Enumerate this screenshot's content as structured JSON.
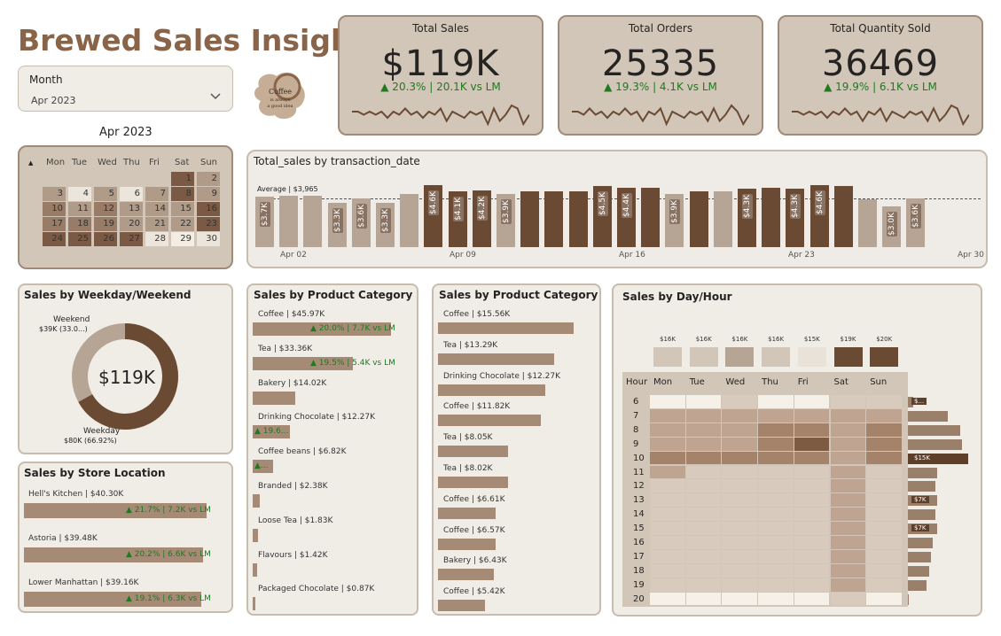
{
  "header": {
    "title": "Brewed Sales Insights",
    "month_label": "Month",
    "month_value": "Apr 2023",
    "logo_text": "Coffee is always a good idea"
  },
  "colors": {
    "dark": "#6b4a33",
    "mid": "#9a7f6b",
    "light": "#b6a594",
    "pale": "#e8e2d8",
    "card": "#d1c6b8",
    "positive": "#1f7a1f"
  },
  "kpis": [
    {
      "title": "Total Sales",
      "value": "$119K",
      "delta": "▲ 20.3% | 20.1K vs LM",
      "spark": [
        6,
        6,
        5,
        6,
        5,
        6,
        4,
        6,
        5,
        7,
        5,
        6,
        4,
        6,
        5,
        7,
        3,
        6,
        5,
        4,
        6,
        5,
        6,
        2,
        7,
        3,
        5,
        8,
        7,
        2,
        5
      ]
    },
    {
      "title": "Total Orders",
      "value": "25335",
      "delta": "▲ 19.3% | 4.1K vs LM",
      "spark": [
        6,
        6,
        5,
        7,
        5,
        6,
        4,
        6,
        5,
        7,
        5,
        6,
        3,
        6,
        5,
        7,
        2,
        6,
        5,
        4,
        6,
        5,
        6,
        3,
        7,
        3,
        5,
        8,
        6,
        2,
        5
      ]
    },
    {
      "title": "Total Quantity Sold",
      "value": "36469",
      "delta": "▲ 19.9% | 6.1K vs LM",
      "spark": [
        6,
        6,
        5,
        6,
        5,
        6,
        4,
        6,
        5,
        7,
        5,
        6,
        3,
        6,
        5,
        7,
        3,
        6,
        5,
        4,
        6,
        5,
        6,
        3,
        7,
        3,
        5,
        8,
        7,
        2,
        5
      ]
    }
  ],
  "calendar": {
    "title": "Apr 2023",
    "days_header": [
      "Mon",
      "Tue",
      "Wed",
      "Thu",
      "Fri",
      "Sat",
      "Sun"
    ],
    "weeks": [
      [
        "",
        "",
        "",
        "",
        "",
        "1",
        "2"
      ],
      [
        "3",
        "4",
        "5",
        "6",
        "7",
        "8",
        "9"
      ],
      [
        "10",
        "11",
        "12",
        "13",
        "14",
        "15",
        "16"
      ],
      [
        "17",
        "18",
        "19",
        "20",
        "21",
        "22",
        "23"
      ],
      [
        "24",
        "25",
        "26",
        "27",
        "28",
        "29",
        "30"
      ]
    ],
    "shades": [
      [
        0,
        0,
        0,
        0,
        0,
        4,
        2
      ],
      [
        2,
        0,
        2,
        0,
        2,
        4,
        2
      ],
      [
        3,
        2,
        3,
        2,
        2,
        2,
        4
      ],
      [
        3,
        3,
        3,
        2,
        2,
        2,
        4
      ],
      [
        4,
        4,
        4,
        4,
        0,
        1,
        0
      ]
    ]
  },
  "daily_chart": {
    "title": "Total_sales by transaction_date",
    "average_label": "Average | $3,965",
    "x_ticks": [
      "Apr 02",
      "Apr 09",
      "Apr 16",
      "Apr 23",
      "Apr 30"
    ],
    "values": [
      3.7,
      3.8,
      3.8,
      3.3,
      3.6,
      3.3,
      3.9,
      4.6,
      4.1,
      4.2,
      3.9,
      4.1,
      4.1,
      4.1,
      4.5,
      4.4,
      4.4,
      3.9,
      4.1,
      4.1,
      4.3,
      4.4,
      4.3,
      4.6,
      4.5,
      3.5,
      3.0,
      3.6
    ],
    "dark": [
      0,
      0,
      0,
      0,
      0,
      0,
      0,
      1,
      1,
      1,
      0,
      1,
      1,
      1,
      1,
      1,
      1,
      0,
      1,
      0,
      1,
      1,
      1,
      1,
      1,
      0,
      0,
      0
    ],
    "labels": [
      "$3.7K",
      "",
      "",
      "$3.3K",
      "$3.6K",
      "$3.3K",
      "",
      "$4.6K",
      "$4.1K",
      "$4.2K",
      "$3.9K",
      "",
      "",
      "",
      "$4.5K",
      "$4.4K",
      "",
      "$3.9K",
      "",
      "",
      "$4.3K",
      "",
      "$4.3K",
      "$4.6K",
      "",
      "",
      "$3.0K",
      "$3.6K"
    ]
  },
  "weekday": {
    "title": "Sales by Weekday/Weekend",
    "center": "$119K",
    "weekend_label": "Weekend",
    "weekend_value": "$39K (33.0...)",
    "weekday_label": "Weekday",
    "weekday_value": "$80K (66.92%)",
    "weekend_share": 33.08
  },
  "stores": {
    "title": "Sales by Store Location",
    "items": [
      {
        "label": "Hell's Kitchen | $40.30K",
        "delta": "▲ 21.7% | 7.2K vs LM",
        "value": 40.3
      },
      {
        "label": "Astoria | $39.48K",
        "delta": "▲ 20.2% | 6.6K vs LM",
        "value": 39.48
      },
      {
        "label": "Lower Manhattan | $39.16K",
        "delta": "▲ 19.1% | 6.3K vs LM",
        "value": 39.16
      }
    ]
  },
  "category": {
    "title": "Sales by Product Category",
    "items": [
      {
        "label": "Coffee | $45.97K",
        "delta": "▲ 20.0% | 7.7K vs LM",
        "value": 45.97
      },
      {
        "label": "Tea | $33.36K",
        "delta": "▲ 19.5% | 5.4K vs LM",
        "value": 33.36
      },
      {
        "label": "Bakery | $14.02K",
        "delta": "",
        "value": 14.02
      },
      {
        "label": "Drinking Chocolate | $12.27K",
        "delta": "▲ 19.6...",
        "value": 12.27
      },
      {
        "label": "Coffee beans | $6.82K",
        "delta": "▲...",
        "value": 6.82
      },
      {
        "label": "Branded | $2.38K",
        "delta": "",
        "value": 2.38
      },
      {
        "label": "Loose Tea | $1.83K",
        "delta": "",
        "value": 1.83
      },
      {
        "label": "Flavours | $1.42K",
        "delta": "",
        "value": 1.42
      },
      {
        "label": "Packaged Chocolate | $0.87K",
        "delta": "",
        "value": 0.87
      }
    ]
  },
  "product": {
    "title": "Sales by Product Category",
    "items": [
      {
        "label": "Coffee | $15.56K",
        "value": 15.56
      },
      {
        "label": "Tea | $13.29K",
        "value": 13.29
      },
      {
        "label": "Drinking Chocolate | $12.27K",
        "value": 12.27
      },
      {
        "label": "Coffee | $11.82K",
        "value": 11.82
      },
      {
        "label": "Tea | $8.05K",
        "value": 8.05
      },
      {
        "label": "Tea | $8.02K",
        "value": 8.02
      },
      {
        "label": "Coffee | $6.61K",
        "value": 6.61
      },
      {
        "label": "Coffee | $6.57K",
        "value": 6.57
      },
      {
        "label": "Bakery | $6.43K",
        "value": 6.43
      },
      {
        "label": "Coffee | $5.42K",
        "value": 5.42
      }
    ]
  },
  "dayhour": {
    "title": "Sales by Day/Hour",
    "hour_header": "Hour",
    "days": [
      "Mon",
      "Tue",
      "Wed",
      "Thu",
      "Fri",
      "Sat",
      "Sun"
    ],
    "day_totals": [
      "$16K",
      "$16K",
      "$16K",
      "$16K",
      "$15K",
      "$19K",
      "$20K"
    ],
    "day_shades": [
      1,
      1,
      2,
      1,
      0,
      4,
      4
    ],
    "hours": [
      "6",
      "7",
      "8",
      "9",
      "10",
      "11",
      "12",
      "13",
      "14",
      "15",
      "16",
      "17",
      "18",
      "19",
      "20"
    ],
    "hour_labels": [
      "$...",
      "",
      "",
      "",
      "$15K",
      "",
      "",
      "$7K",
      "",
      "$7K",
      "",
      "",
      "",
      "",
      ""
    ],
    "hour_values": [
      1.2,
      9.5,
      12.5,
      13.0,
      14.5,
      7.0,
      6.6,
      7.0,
      6.5,
      7.0,
      6.0,
      5.5,
      5.2,
      4.4,
      0.3
    ],
    "grid": [
      [
        0,
        0,
        1,
        0,
        0,
        1,
        1
      ],
      [
        2,
        2,
        2,
        2,
        2,
        2,
        2
      ],
      [
        2,
        2,
        2,
        3,
        3,
        2,
        3
      ],
      [
        2,
        2,
        2,
        3,
        4,
        2,
        3
      ],
      [
        3,
        3,
        3,
        3,
        3,
        2,
        3
      ],
      [
        2,
        1,
        1,
        1,
        1,
        2,
        1
      ],
      [
        1,
        1,
        1,
        1,
        1,
        2,
        1
      ],
      [
        1,
        1,
        1,
        1,
        1,
        2,
        1
      ],
      [
        1,
        1,
        1,
        1,
        1,
        2,
        1
      ],
      [
        1,
        1,
        1,
        1,
        1,
        2,
        1
      ],
      [
        1,
        1,
        1,
        1,
        1,
        2,
        1
      ],
      [
        1,
        1,
        1,
        1,
        1,
        2,
        1
      ],
      [
        1,
        1,
        1,
        1,
        1,
        2,
        1
      ],
      [
        1,
        1,
        1,
        1,
        1,
        2,
        1
      ],
      [
        0,
        0,
        0,
        0,
        0,
        1,
        0
      ]
    ]
  }
}
